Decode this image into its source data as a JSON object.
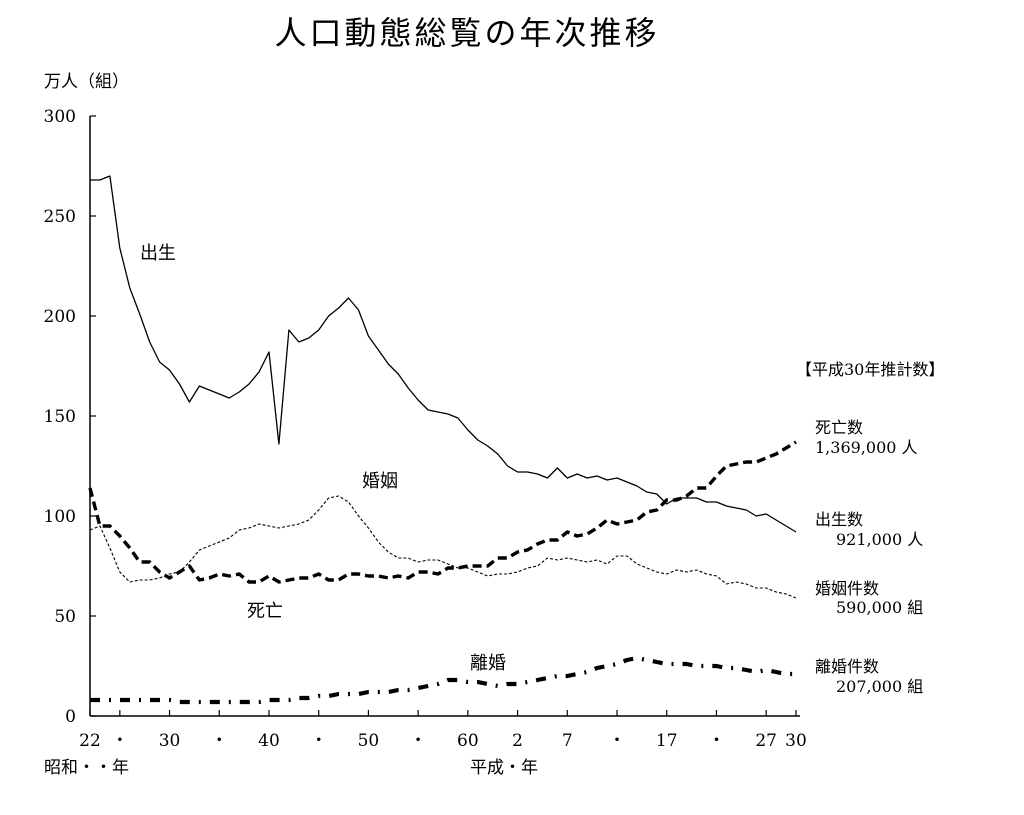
{
  "chart_data": {
    "type": "line",
    "title": "人口動態総覧の年次推移",
    "ylabel": "万人（組）",
    "ylim": [
      0,
      300
    ],
    "yticks": [
      0,
      50,
      100,
      150,
      200,
      250,
      300
    ],
    "xlim": [
      1947,
      2018
    ],
    "grid": false,
    "xticks": [
      {
        "year": 1947,
        "label": "22"
      },
      {
        "year": 1950,
        "label": "・"
      },
      {
        "year": 1955,
        "label": "30"
      },
      {
        "year": 1960,
        "label": "・"
      },
      {
        "year": 1965,
        "label": "40"
      },
      {
        "year": 1970,
        "label": "・"
      },
      {
        "year": 1975,
        "label": "50"
      },
      {
        "year": 1980,
        "label": "・"
      },
      {
        "year": 1985,
        "label": "60"
      },
      {
        "year": 1990,
        "label": "2"
      },
      {
        "year": 1995,
        "label": "7"
      },
      {
        "year": 2000,
        "label": "・"
      },
      {
        "year": 2005,
        "label": "17"
      },
      {
        "year": 2010,
        "label": "・"
      },
      {
        "year": 2015,
        "label": "27"
      },
      {
        "year": 2018,
        "label": "30"
      }
    ],
    "era_labels": {
      "showa": "昭和・・年",
      "heisei": "平成・年"
    },
    "estimate_header": "【平成30年推計数】",
    "x": [
      1947,
      1948,
      1949,
      1950,
      1951,
      1952,
      1953,
      1954,
      1955,
      1956,
      1957,
      1958,
      1959,
      1960,
      1961,
      1962,
      1963,
      1964,
      1965,
      1966,
      1967,
      1968,
      1969,
      1970,
      1971,
      1972,
      1973,
      1974,
      1975,
      1976,
      1977,
      1978,
      1979,
      1980,
      1981,
      1982,
      1983,
      1984,
      1985,
      1986,
      1987,
      1988,
      1989,
      1990,
      1991,
      1992,
      1993,
      1994,
      1995,
      1996,
      1997,
      1998,
      1999,
      2000,
      2001,
      2002,
      2003,
      2004,
      2005,
      2006,
      2007,
      2008,
      2009,
      2010,
      2011,
      2012,
      2013,
      2014,
      2015,
      2016,
      2017,
      2018
    ],
    "series": [
      {
        "name": "出生",
        "style": "solid",
        "values": [
          268,
          268,
          270,
          234,
          214,
          201,
          187,
          177,
          173,
          166,
          157,
          165,
          163,
          161,
          159,
          162,
          166,
          172,
          182,
          136,
          193,
          187,
          189,
          193,
          200,
          204,
          209,
          203,
          190,
          183,
          176,
          171,
          164,
          158,
          153,
          152,
          151,
          149,
          143,
          138,
          135,
          131,
          125,
          122,
          122,
          121,
          119,
          124,
          119,
          121,
          119,
          120,
          118,
          119,
          117,
          115,
          112,
          111,
          106,
          109,
          109,
          109,
          107,
          107,
          105,
          104,
          103,
          100,
          101,
          98,
          95,
          92
        ],
        "label": "出生",
        "endnote": {
          "name": "出生数",
          "value": "921,000 人"
        }
      },
      {
        "name": "死亡",
        "style": "dashed-thick",
        "values": [
          114,
          95,
          95,
          90,
          84,
          77,
          77,
          72,
          69,
          72,
          75,
          68,
          69,
          71,
          70,
          71,
          67,
          67,
          70,
          67,
          68,
          69,
          69,
          71,
          68,
          68,
          71,
          71,
          70,
          70,
          69,
          70,
          69,
          72,
          72,
          71,
          74,
          74,
          75,
          75,
          75,
          79,
          79,
          82,
          83,
          86,
          88,
          88,
          92,
          90,
          91,
          94,
          98,
          96,
          97,
          98,
          102,
          103,
          108,
          108,
          110,
          114,
          114,
          120,
          125,
          126,
          127,
          127,
          129,
          131,
          134,
          137
        ],
        "label": "死亡",
        "endnote": {
          "name": "死亡数",
          "value": "1,369,000 人"
        }
      },
      {
        "name": "婚姻",
        "style": "dotted",
        "values": [
          93,
          95,
          84,
          72,
          67,
          68,
          68,
          69,
          71,
          72,
          77,
          83,
          85,
          87,
          89,
          93,
          94,
          96,
          95,
          94,
          95,
          96,
          98,
          103,
          109,
          110,
          107,
          100,
          94,
          87,
          82,
          79,
          79,
          77,
          78,
          78,
          76,
          74,
          74,
          72,
          70,
          71,
          71,
          72,
          74,
          75,
          79,
          78,
          79,
          78,
          77,
          78,
          76,
          80,
          80,
          76,
          74,
          72,
          71,
          73,
          72,
          73,
          71,
          70,
          66,
          67,
          66,
          64,
          64,
          62,
          61,
          59
        ],
        "label": "婚姻",
        "endnote": {
          "name": "婚姻件数",
          "value": "590,000 組"
        }
      },
      {
        "name": "離婚",
        "style": "dashdot-thick",
        "values": [
          8,
          8,
          8,
          8,
          8,
          8,
          8,
          8,
          8,
          7,
          7,
          7,
          7,
          7,
          7,
          7,
          7,
          7,
          8,
          8,
          8,
          9,
          9,
          10,
          10,
          11,
          11,
          11,
          12,
          12,
          12,
          13,
          13,
          14,
          15,
          16,
          18,
          18,
          17,
          17,
          16,
          15,
          16,
          16,
          17,
          18,
          19,
          20,
          20,
          21,
          22,
          24,
          25,
          26,
          28,
          29,
          28,
          27,
          26,
          26,
          26,
          25,
          25,
          25,
          24,
          24,
          23,
          22,
          23,
          22,
          21,
          21
        ],
        "label": "離婚",
        "endnote": {
          "name": "離婚件数",
          "value": "207,000 組"
        }
      }
    ]
  }
}
